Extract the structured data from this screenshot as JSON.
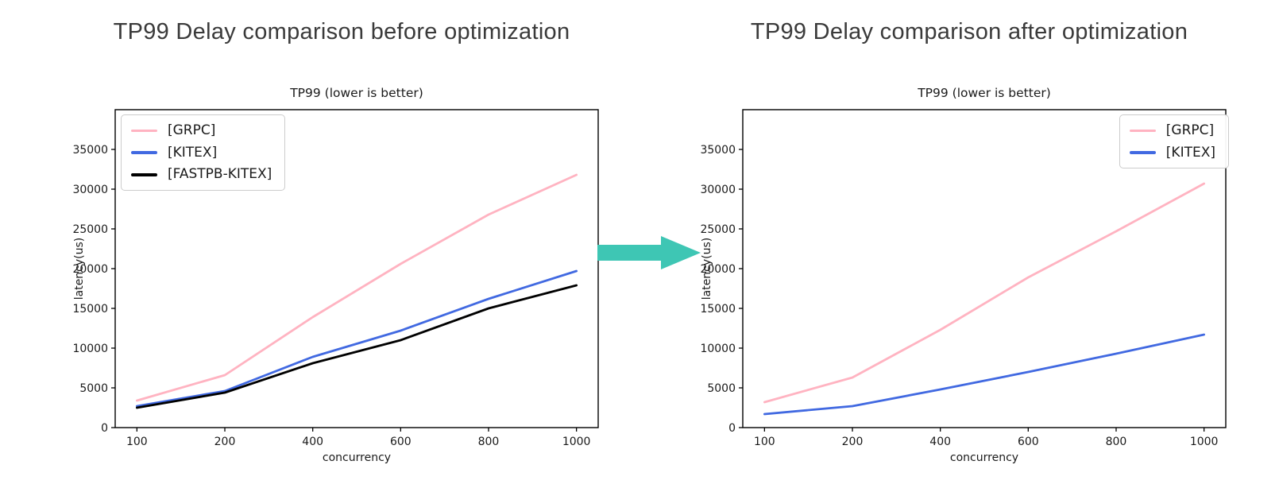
{
  "page": {
    "background": "#ffffff"
  },
  "arrow": {
    "name": "right-arrow",
    "direction": "right",
    "color": "#3ec6b4"
  },
  "axis": {
    "text_color": "#1a1a1a",
    "spine_color": "#000000"
  },
  "chart_data": [
    {
      "heading": "TP99 Delay comparison before optimization",
      "type": "line",
      "title": "TP99 (lower is better)",
      "xlabel": "concurrency",
      "ylabel": "latency(us)",
      "categories": [
        100,
        200,
        400,
        600,
        800,
        1000
      ],
      "ylim": [
        0,
        40000
      ],
      "yticks": [
        0,
        5000,
        10000,
        15000,
        20000,
        25000,
        30000,
        35000
      ],
      "grid": false,
      "legend_position": "top-left",
      "series": [
        {
          "name": "[GRPC]",
          "color": "#ffb3c1",
          "values": [
            3400,
            6600,
            13900,
            20600,
            26800,
            31800
          ]
        },
        {
          "name": "[KITEX]",
          "color": "#4169e1",
          "values": [
            2700,
            4600,
            8900,
            12200,
            16200,
            19700
          ]
        },
        {
          "name": "[FASTPB-KITEX]",
          "color": "#000000",
          "values": [
            2500,
            4400,
            8100,
            11000,
            15000,
            17900
          ]
        }
      ]
    },
    {
      "heading": "TP99 Delay comparison after optimization",
      "type": "line",
      "title": "TP99 (lower is better)",
      "xlabel": "concurrency",
      "ylabel": "latency(us)",
      "categories": [
        100,
        200,
        400,
        600,
        800,
        1000
      ],
      "ylim": [
        0,
        40000
      ],
      "yticks": [
        0,
        5000,
        10000,
        15000,
        20000,
        25000,
        30000,
        35000
      ],
      "grid": false,
      "legend_position": "top-right",
      "series": [
        {
          "name": "[GRPC]",
          "color": "#ffb3c1",
          "values": [
            3200,
            6300,
            12300,
            18900,
            24700,
            30700
          ]
        },
        {
          "name": "[KITEX]",
          "color": "#4169e1",
          "values": [
            1700,
            2700,
            4800,
            7000,
            9300,
            11700
          ]
        }
      ]
    }
  ]
}
